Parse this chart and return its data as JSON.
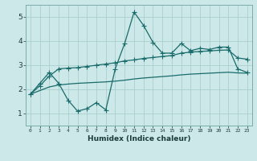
{
  "xlabel": "Humidex (Indice chaleur)",
  "bg_color": "#cce8e8",
  "grid_color": "#aacece",
  "line_color": "#1a6b6b",
  "x_values": [
    0,
    1,
    2,
    3,
    4,
    5,
    6,
    7,
    8,
    9,
    10,
    11,
    12,
    13,
    14,
    15,
    16,
    17,
    18,
    19,
    20,
    21,
    22,
    23
  ],
  "line1": [
    1.8,
    2.25,
    2.7,
    2.25,
    1.55,
    1.1,
    1.2,
    1.45,
    1.15,
    2.85,
    3.9,
    5.2,
    4.65,
    3.95,
    3.5,
    3.5,
    3.9,
    3.6,
    3.7,
    3.65,
    3.75,
    3.75,
    2.85,
    2.7
  ],
  "line2": [
    1.8,
    2.15,
    2.55,
    2.85,
    2.88,
    2.9,
    2.95,
    3.0,
    3.05,
    3.1,
    3.18,
    3.22,
    3.28,
    3.32,
    3.36,
    3.4,
    3.5,
    3.54,
    3.57,
    3.59,
    3.62,
    3.63,
    3.3,
    3.25
  ],
  "line3": [
    1.8,
    1.95,
    2.1,
    2.18,
    2.22,
    2.25,
    2.27,
    2.29,
    2.31,
    2.34,
    2.38,
    2.43,
    2.47,
    2.5,
    2.53,
    2.56,
    2.6,
    2.63,
    2.65,
    2.67,
    2.69,
    2.71,
    2.68,
    2.67
  ],
  "ylim": [
    0.5,
    5.5
  ],
  "yticks": [
    1,
    2,
    3,
    4,
    5
  ],
  "xtick_labels": [
    "0",
    "1",
    "2",
    "3",
    "4",
    "5",
    "6",
    "7",
    "8",
    "9",
    "10",
    "11",
    "12",
    "13",
    "14",
    "15",
    "16",
    "17",
    "18",
    "19",
    "20",
    "21",
    "22",
    "23"
  ]
}
